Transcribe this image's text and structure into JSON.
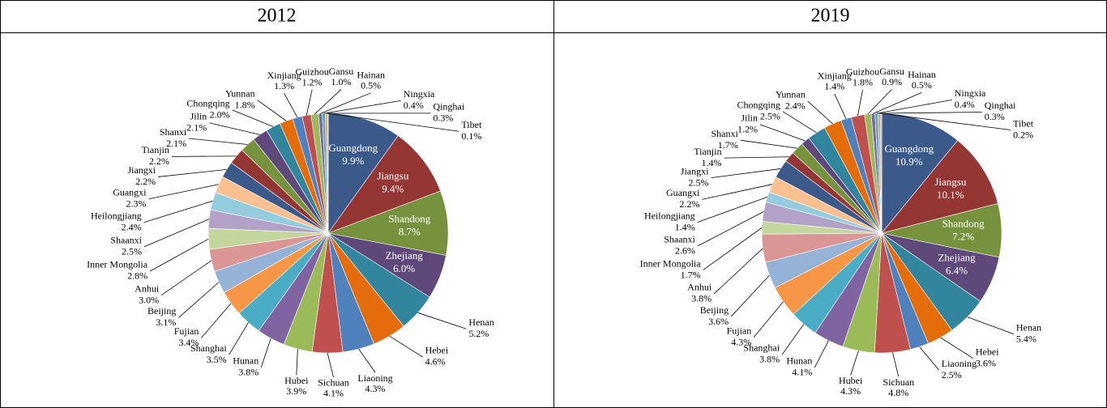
{
  "chart_data": [
    {
      "type": "pie",
      "title": "2012",
      "categories": [
        "Guangdong",
        "Jiangsu",
        "Shandong",
        "Zhejiang",
        "Henan",
        "Hebei",
        "Liaoning",
        "Sichuan",
        "Hubei",
        "Hunan",
        "Shanghai",
        "Fujian",
        "Beijing",
        "Anhui",
        "Inner Mongolia",
        "Shaanxi",
        "Heilongjiang",
        "Guangxi",
        "Jiangxi",
        "Tianjin",
        "Shanxi",
        "Jilin",
        "Chongqing",
        "Yunnan",
        "Xinjiang",
        "Guizhou",
        "Gansu",
        "Hainan",
        "Ningxia",
        "Qinghai",
        "Tibet"
      ],
      "values": [
        9.9,
        9.4,
        8.7,
        6.0,
        5.2,
        4.6,
        4.3,
        4.1,
        3.9,
        3.8,
        3.5,
        3.4,
        3.1,
        3.0,
        2.8,
        2.5,
        2.4,
        2.3,
        2.2,
        2.2,
        2.1,
        2.1,
        2.0,
        1.8,
        1.3,
        1.2,
        1.0,
        0.5,
        0.4,
        0.3,
        0.1
      ],
      "value_labels": [
        "9.9%",
        "9.4%",
        "8.7%",
        "6.0%",
        "5.2%",
        "4.6%",
        "4.3%",
        "4.1%",
        "3.9%",
        "3.8%",
        "3.5%",
        "3.4%",
        "3.1%",
        "3.0%",
        "2.8%",
        "2.5%",
        "2.4%",
        "2.3%",
        "2.2%",
        "2.2%",
        "2.1%",
        "2.1%",
        "2.0%",
        "1.8%",
        "1.3%",
        "1.2%",
        "1.0%",
        "0.5%",
        "0.4%",
        "0.3%",
        "0.1%"
      ],
      "colors": [
        "#3b5a8a",
        "#943634",
        "#76923c",
        "#5f497a",
        "#31859c",
        "#e46c0a",
        "#4f81bd",
        "#c0504d",
        "#9bbb59",
        "#8064a2",
        "#4bacc6",
        "#f79646",
        "#95b3d7",
        "#d99694",
        "#c3d69b",
        "#b3a2c7",
        "#93cddd",
        "#fac090"
      ]
    },
    {
      "type": "pie",
      "title": "2019",
      "categories": [
        "Guangdong",
        "Jiangsu",
        "Shandong",
        "Zhejiang",
        "Henan",
        "Hebei",
        "Liaoning",
        "Sichuan",
        "Hubei",
        "Hunan",
        "Shanghai",
        "Fujian",
        "Beijing",
        "Anhui",
        "Inner Mongolia",
        "Shaanxi",
        "Heilongjiang",
        "Guangxi",
        "Jiangxi",
        "Tianjin",
        "Shanxi",
        "Jilin",
        "Chongqing",
        "Yunnan",
        "Xinjiang",
        "Guizhou",
        "Gansu",
        "Hainan",
        "Ningxia",
        "Qinghai",
        "Tibet"
      ],
      "values": [
        10.9,
        10.1,
        7.2,
        6.4,
        5.4,
        3.6,
        2.5,
        4.8,
        4.3,
        4.1,
        3.8,
        4.3,
        3.6,
        3.8,
        1.7,
        2.6,
        1.4,
        2.2,
        2.5,
        1.4,
        1.7,
        1.2,
        2.5,
        2.4,
        1.4,
        1.8,
        0.9,
        0.5,
        0.4,
        0.3,
        0.2
      ],
      "value_labels": [
        "10.9%",
        "10.1%",
        "7.2%",
        "6.4%",
        "5.4%",
        "3.6%",
        "2.5%",
        "4.8%",
        "4.3%",
        "4.1%",
        "3.8%",
        "4.3%",
        "3.6%",
        "3.8%",
        "1.7%",
        "2.6%",
        "1.4%",
        "2.2%",
        "2.5%",
        "1.4%",
        "1.7%",
        "1.2%",
        "2.5%",
        "2.4%",
        "1.4%",
        "1.8%",
        "0.9%",
        "0.5%",
        "0.4%",
        "0.3%",
        "0.2%"
      ],
      "colors": [
        "#3b5a8a",
        "#943634",
        "#76923c",
        "#5f497a",
        "#31859c",
        "#e46c0a",
        "#4f81bd",
        "#c0504d",
        "#9bbb59",
        "#8064a2",
        "#4bacc6",
        "#f79646",
        "#95b3d7",
        "#d99694",
        "#c3d69b",
        "#b3a2c7",
        "#93cddd",
        "#fac090"
      ]
    }
  ]
}
